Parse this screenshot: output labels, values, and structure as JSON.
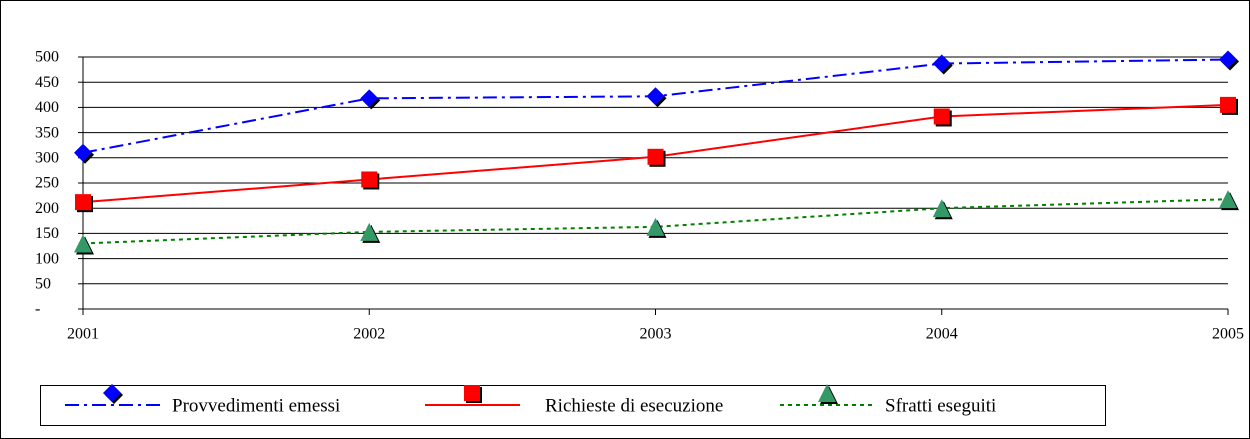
{
  "chart_data": {
    "type": "line",
    "x": [
      2001,
      2002,
      2003,
      2004,
      2005
    ],
    "xlim": [
      2001,
      2005
    ],
    "xticks": [
      2001,
      2002,
      2003,
      2004,
      2005
    ],
    "ylim": [
      0,
      500
    ],
    "yticks": [
      {
        "value": 0,
        "label": "-"
      },
      50,
      100,
      150,
      200,
      250,
      300,
      350,
      400,
      450,
      500
    ],
    "grid": true,
    "legend": "bottom",
    "series": [
      {
        "name": "Provvedimenti emessi",
        "color": "#0000ff",
        "marker": "diamond",
        "line": "dashdot",
        "values": [
          310,
          418,
          422,
          487,
          495
        ]
      },
      {
        "name": "Richieste di esecuzione",
        "color": "#ff0000",
        "marker": "square",
        "line": "solid",
        "values": [
          212,
          257,
          302,
          382,
          405
        ]
      },
      {
        "name": "Sfratti eseguiti",
        "color": "#339966",
        "linecolor": "#008000",
        "marker": "triangle",
        "line": "dotted",
        "values": [
          130,
          153,
          163,
          200,
          218
        ]
      }
    ]
  }
}
